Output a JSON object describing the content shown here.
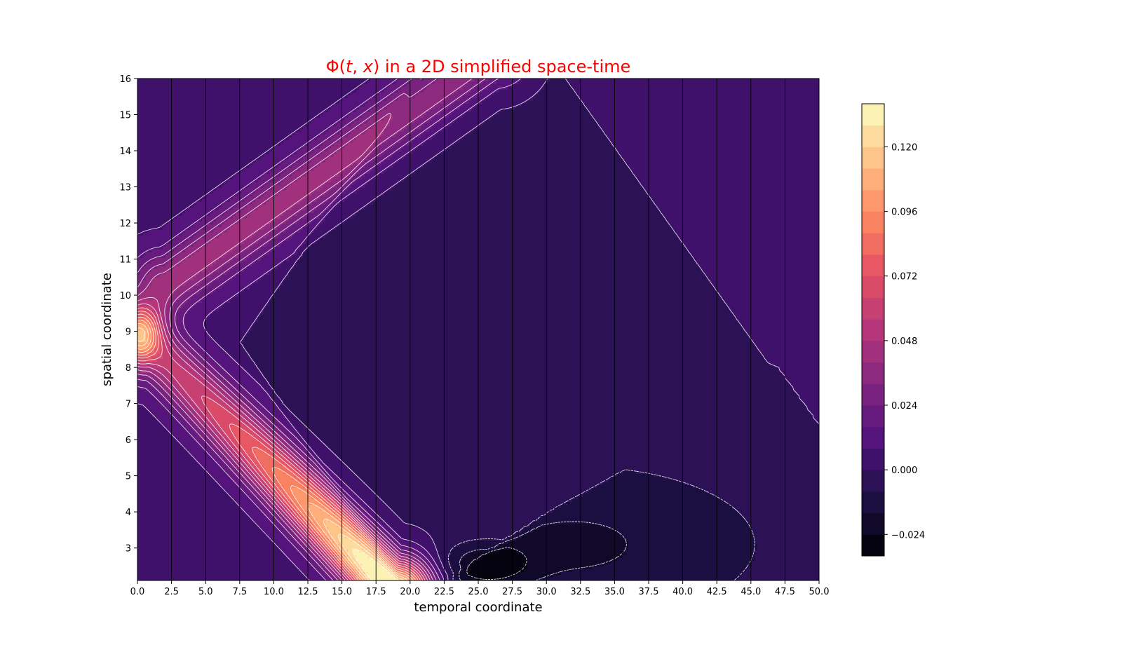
{
  "chart_data": {
    "type": "heatmap",
    "subtype": "filled-contour",
    "title_prefix": "Φ(",
    "title_t": "t",
    "title_sep": ", ",
    "title_x": "x",
    "title_suffix": ") in a 2D simplified space-time",
    "title_color": "#ff0000",
    "xlabel": "temporal coordinate",
    "ylabel": "spatial coordinate",
    "xlim": [
      0,
      50
    ],
    "ylim": [
      2.1,
      16
    ],
    "xticks": [
      0.0,
      2.5,
      5.0,
      7.5,
      10.0,
      12.5,
      15.0,
      17.5,
      20.0,
      22.5,
      25.0,
      27.5,
      30.0,
      32.5,
      35.0,
      37.5,
      40.0,
      42.5,
      45.0,
      47.5,
      50.0
    ],
    "xtick_labels": [
      "0.0",
      "2.5",
      "5.0",
      "7.5",
      "10.0",
      "12.5",
      "15.0",
      "17.5",
      "20.0",
      "22.5",
      "25.0",
      "27.5",
      "30.0",
      "32.5",
      "35.0",
      "37.5",
      "40.0",
      "42.5",
      "45.0",
      "47.5",
      "50.0"
    ],
    "yticks": [
      3,
      4,
      5,
      6,
      7,
      8,
      9,
      10,
      11,
      12,
      13,
      14,
      15,
      16
    ],
    "ytick_labels": [
      "3",
      "4",
      "5",
      "6",
      "7",
      "8",
      "9",
      "10",
      "11",
      "12",
      "13",
      "14",
      "15",
      "16"
    ],
    "vertical_gridlines_x": [
      2.5,
      5.0,
      7.5,
      10.0,
      12.5,
      15.0,
      17.5,
      20.0,
      22.5,
      25.0,
      27.5,
      30.0,
      32.5,
      35.0,
      37.5,
      40.0,
      42.5,
      45.0,
      47.5
    ],
    "grid": "vertical-only",
    "colormap": "magma",
    "colorbar": {
      "vmin": -0.032,
      "vmax": 0.136,
      "levels": 21,
      "ticks": [
        0.12,
        0.096,
        0.072,
        0.048,
        0.024,
        0.0,
        -0.024
      ],
      "tick_labels": [
        "0.120",
        "0.096",
        "0.072",
        "0.048",
        "0.024",
        "0.000",
        "−0.024"
      ],
      "placement": "right"
    },
    "features": [
      {
        "name": "source peak",
        "t": 0.5,
        "x": 9.0,
        "value": 0.08
      },
      {
        "name": "down-going ridge",
        "from": [
          1.0,
          8.6
        ],
        "to": [
          18.0,
          2.1
        ],
        "peak_value": 0.136
      },
      {
        "name": "up-going ridge",
        "from": [
          2.0,
          10.4
        ],
        "to": [
          24.0,
          16.0
        ],
        "peak_value": 0.04
      },
      {
        "name": "negative trough",
        "t": 25.0,
        "x": 2.6,
        "value": -0.03
      },
      {
        "name": "background",
        "value": 0.006
      }
    ]
  },
  "colors": {
    "background": "#ffffff",
    "axis": "#000000",
    "contour_line": "#ffffff",
    "gridline": "#000000"
  }
}
